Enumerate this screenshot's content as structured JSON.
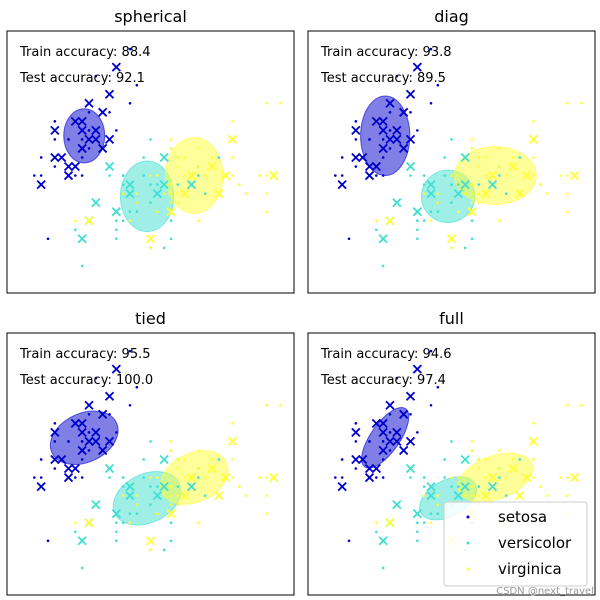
{
  "chart_data": {
    "type": "scatter",
    "panels": [
      {
        "title": "spherical",
        "train_label": "Train accuracy: 88.4",
        "test_label": "Test accuracy: 92.1",
        "ellipses": [
          {
            "class": "setosa",
            "cx": 5.03,
            "cy": 3.44,
            "rx": 0.3,
            "ry": 0.3,
            "angle": 0
          },
          {
            "class": "versicolor",
            "cx": 5.95,
            "cy": 2.77,
            "rx": 0.39,
            "ry": 0.39,
            "angle": 0
          },
          {
            "class": "virginica",
            "cx": 6.64,
            "cy": 3.0,
            "rx": 0.42,
            "ry": 0.42,
            "angle": 0
          }
        ]
      },
      {
        "title": "diag",
        "train_label": "Train accuracy: 93.8",
        "test_label": "Test accuracy: 89.5",
        "ellipses": [
          {
            "class": "setosa",
            "cx": 5.03,
            "cy": 3.44,
            "rx": 0.36,
            "ry": 0.44,
            "angle": 0
          },
          {
            "class": "versicolor",
            "cx": 5.95,
            "cy": 2.77,
            "rx": 0.39,
            "ry": 0.29,
            "angle": 0
          },
          {
            "class": "virginica",
            "cx": 6.64,
            "cy": 3.0,
            "rx": 0.6,
            "ry": 0.32,
            "angle": 0
          }
        ]
      },
      {
        "title": "tied",
        "train_label": "Train accuracy: 95.5",
        "test_label": "Test accuracy: 100.0",
        "ellipses": [
          {
            "class": "setosa",
            "cx": 5.03,
            "cy": 3.44,
            "rx": 0.52,
            "ry": 0.27,
            "angle": -25
          },
          {
            "class": "versicolor",
            "cx": 5.95,
            "cy": 2.77,
            "rx": 0.52,
            "ry": 0.27,
            "angle": -25
          },
          {
            "class": "virginica",
            "cx": 6.64,
            "cy": 3.0,
            "rx": 0.52,
            "ry": 0.27,
            "angle": -25
          }
        ]
      },
      {
        "title": "full",
        "train_label": "Train accuracy: 94.6",
        "test_label": "Test accuracy: 97.4",
        "ellipses": [
          {
            "class": "setosa",
            "cx": 5.03,
            "cy": 3.44,
            "rx": 0.52,
            "ry": 0.16,
            "angle": -55
          },
          {
            "class": "versicolor",
            "cx": 5.95,
            "cy": 2.77,
            "rx": 0.45,
            "ry": 0.2,
            "angle": -28
          },
          {
            "class": "virginica",
            "cx": 6.64,
            "cy": 3.0,
            "rx": 0.57,
            "ry": 0.24,
            "angle": -20
          }
        ]
      }
    ],
    "classes": [
      {
        "name": "setosa",
        "color": "#0000cc"
      },
      {
        "name": "versicolor",
        "color": "#40e0d0"
      },
      {
        "name": "virginica",
        "color": "#ffff33"
      }
    ],
    "xlim": [
      3.9,
      8.1
    ],
    "ylim": [
      1.7,
      4.6
    ],
    "train_points": {
      "setosa": [
        [
          5.1,
          3.5
        ],
        [
          4.9,
          3.0
        ],
        [
          4.7,
          3.2
        ],
        [
          4.6,
          3.1
        ],
        [
          5.0,
          3.6
        ],
        [
          5.4,
          3.9
        ],
        [
          4.6,
          3.4
        ],
        [
          5.0,
          3.4
        ],
        [
          4.4,
          2.9
        ],
        [
          4.9,
          3.1
        ],
        [
          5.4,
          3.7
        ],
        [
          4.8,
          3.4
        ],
        [
          4.8,
          3.0
        ],
        [
          4.3,
          3.0
        ],
        [
          5.8,
          4.0
        ],
        [
          5.7,
          4.4
        ],
        [
          5.4,
          3.9
        ],
        [
          5.1,
          3.5
        ],
        [
          5.7,
          3.8
        ],
        [
          5.1,
          3.8
        ],
        [
          5.4,
          3.4
        ],
        [
          5.1,
          3.7
        ],
        [
          4.6,
          3.6
        ],
        [
          5.1,
          3.3
        ],
        [
          4.8,
          3.4
        ],
        [
          5.0,
          3.0
        ],
        [
          5.0,
          3.4
        ],
        [
          5.2,
          3.5
        ],
        [
          5.2,
          3.4
        ],
        [
          4.7,
          3.2
        ],
        [
          4.8,
          3.1
        ],
        [
          5.4,
          3.4
        ],
        [
          5.2,
          4.1
        ],
        [
          5.5,
          4.2
        ],
        [
          4.9,
          3.1
        ],
        [
          5.0,
          3.2
        ],
        [
          5.5,
          3.5
        ],
        [
          4.4,
          3.0
        ],
        [
          4.5,
          2.3
        ],
        [
          4.4,
          3.2
        ],
        [
          5.1,
          3.8
        ],
        [
          4.8,
          3.0
        ]
      ],
      "versicolor": [
        [
          7.0,
          3.2
        ],
        [
          6.4,
          3.2
        ],
        [
          6.9,
          3.1
        ],
        [
          5.5,
          2.3
        ],
        [
          6.5,
          2.8
        ],
        [
          5.7,
          2.8
        ],
        [
          6.3,
          3.3
        ],
        [
          4.9,
          2.4
        ],
        [
          6.6,
          2.9
        ],
        [
          5.2,
          2.7
        ],
        [
          5.0,
          2.0
        ],
        [
          5.9,
          3.0
        ],
        [
          6.0,
          2.2
        ],
        [
          6.1,
          2.9
        ],
        [
          5.6,
          2.9
        ],
        [
          6.7,
          3.1
        ],
        [
          5.6,
          3.0
        ],
        [
          5.8,
          2.7
        ],
        [
          6.2,
          2.2
        ],
        [
          5.6,
          2.5
        ],
        [
          5.9,
          3.2
        ],
        [
          6.1,
          2.8
        ],
        [
          6.3,
          2.5
        ],
        [
          6.1,
          2.8
        ],
        [
          6.4,
          2.9
        ],
        [
          6.6,
          3.0
        ],
        [
          6.8,
          2.8
        ],
        [
          6.7,
          3.0
        ],
        [
          6.0,
          2.9
        ],
        [
          5.7,
          2.6
        ],
        [
          5.5,
          2.4
        ],
        [
          5.8,
          2.7
        ],
        [
          6.0,
          2.7
        ],
        [
          5.4,
          3.0
        ],
        [
          6.0,
          3.4
        ],
        [
          6.7,
          3.1
        ],
        [
          6.3,
          2.3
        ],
        [
          5.6,
          3.0
        ],
        [
          5.5,
          2.5
        ],
        [
          6.1,
          3.0
        ],
        [
          5.8,
          2.6
        ],
        [
          5.0,
          2.3
        ]
      ],
      "virginica": [
        [
          6.3,
          3.3
        ],
        [
          5.8,
          2.7
        ],
        [
          7.1,
          3.0
        ],
        [
          6.3,
          2.9
        ],
        [
          6.5,
          3.0
        ],
        [
          7.6,
          3.0
        ],
        [
          4.9,
          2.5
        ],
        [
          7.3,
          2.9
        ],
        [
          6.7,
          2.5
        ],
        [
          7.2,
          3.6
        ],
        [
          6.5,
          3.2
        ],
        [
          6.4,
          2.7
        ],
        [
          6.8,
          3.0
        ],
        [
          5.7,
          2.5
        ],
        [
          5.8,
          2.8
        ],
        [
          6.4,
          3.2
        ],
        [
          6.5,
          3.0
        ],
        [
          7.7,
          3.8
        ],
        [
          7.7,
          2.6
        ],
        [
          6.0,
          2.2
        ],
        [
          6.9,
          3.2
        ],
        [
          5.6,
          2.8
        ],
        [
          7.7,
          2.8
        ],
        [
          6.3,
          2.7
        ],
        [
          6.7,
          3.3
        ],
        [
          7.2,
          3.2
        ],
        [
          6.2,
          2.8
        ],
        [
          6.1,
          3.0
        ],
        [
          6.4,
          2.8
        ],
        [
          7.2,
          3.0
        ],
        [
          7.4,
          2.8
        ],
        [
          7.9,
          3.8
        ],
        [
          6.4,
          2.8
        ],
        [
          6.3,
          2.8
        ],
        [
          6.1,
          2.6
        ],
        [
          7.7,
          3.0
        ],
        [
          6.3,
          3.4
        ],
        [
          6.4,
          3.1
        ],
        [
          6.0,
          3.0
        ],
        [
          6.9,
          3.1
        ],
        [
          6.7,
          3.1
        ],
        [
          5.8,
          2.7
        ]
      ]
    },
    "test_points": {
      "setosa": [
        [
          4.4,
          2.9
        ],
        [
          4.6,
          3.2
        ],
        [
          4.7,
          3.2
        ],
        [
          4.8,
          3.1
        ],
        [
          4.9,
          3.1
        ],
        [
          5.0,
          3.3
        ],
        [
          5.0,
          3.5
        ],
        [
          5.1,
          3.4
        ],
        [
          5.2,
          3.5
        ],
        [
          5.3,
          3.7
        ],
        [
          5.4,
          3.4
        ],
        [
          5.5,
          4.2
        ],
        [
          5.1,
          3.8
        ],
        [
          4.6,
          3.5
        ],
        [
          5.0,
          3.6
        ],
        [
          5.4,
          3.9
        ],
        [
          5.3,
          3.3
        ],
        [
          4.8,
          3.0
        ],
        [
          4.9,
          3.6
        ],
        [
          5.2,
          3.4
        ]
      ],
      "versicolor": [
        [
          5.7,
          2.8
        ],
        [
          5.5,
          2.6
        ],
        [
          5.0,
          2.3
        ],
        [
          6.1,
          2.8
        ],
        [
          6.2,
          2.9
        ],
        [
          5.1,
          2.5
        ],
        [
          5.7,
          2.9
        ],
        [
          6.6,
          2.9
        ],
        [
          6.2,
          3.2
        ],
        [
          5.2,
          2.7
        ],
        [
          5.4,
          3.1
        ]
      ],
      "virginica": [
        [
          5.1,
          2.5
        ],
        [
          6.0,
          2.3
        ],
        [
          6.5,
          2.8
        ],
        [
          7.0,
          2.8
        ],
        [
          7.1,
          3.0
        ],
        [
          6.9,
          3.1
        ],
        [
          7.2,
          3.4
        ],
        [
          6.6,
          3.0
        ],
        [
          6.3,
          2.6
        ],
        [
          7.8,
          3.0
        ]
      ]
    },
    "legend": {
      "placement": "lower-right",
      "entries": [
        "setosa",
        "versicolor",
        "virginica"
      ]
    },
    "grid": false
  },
  "watermark": "CSDN @next_travel"
}
